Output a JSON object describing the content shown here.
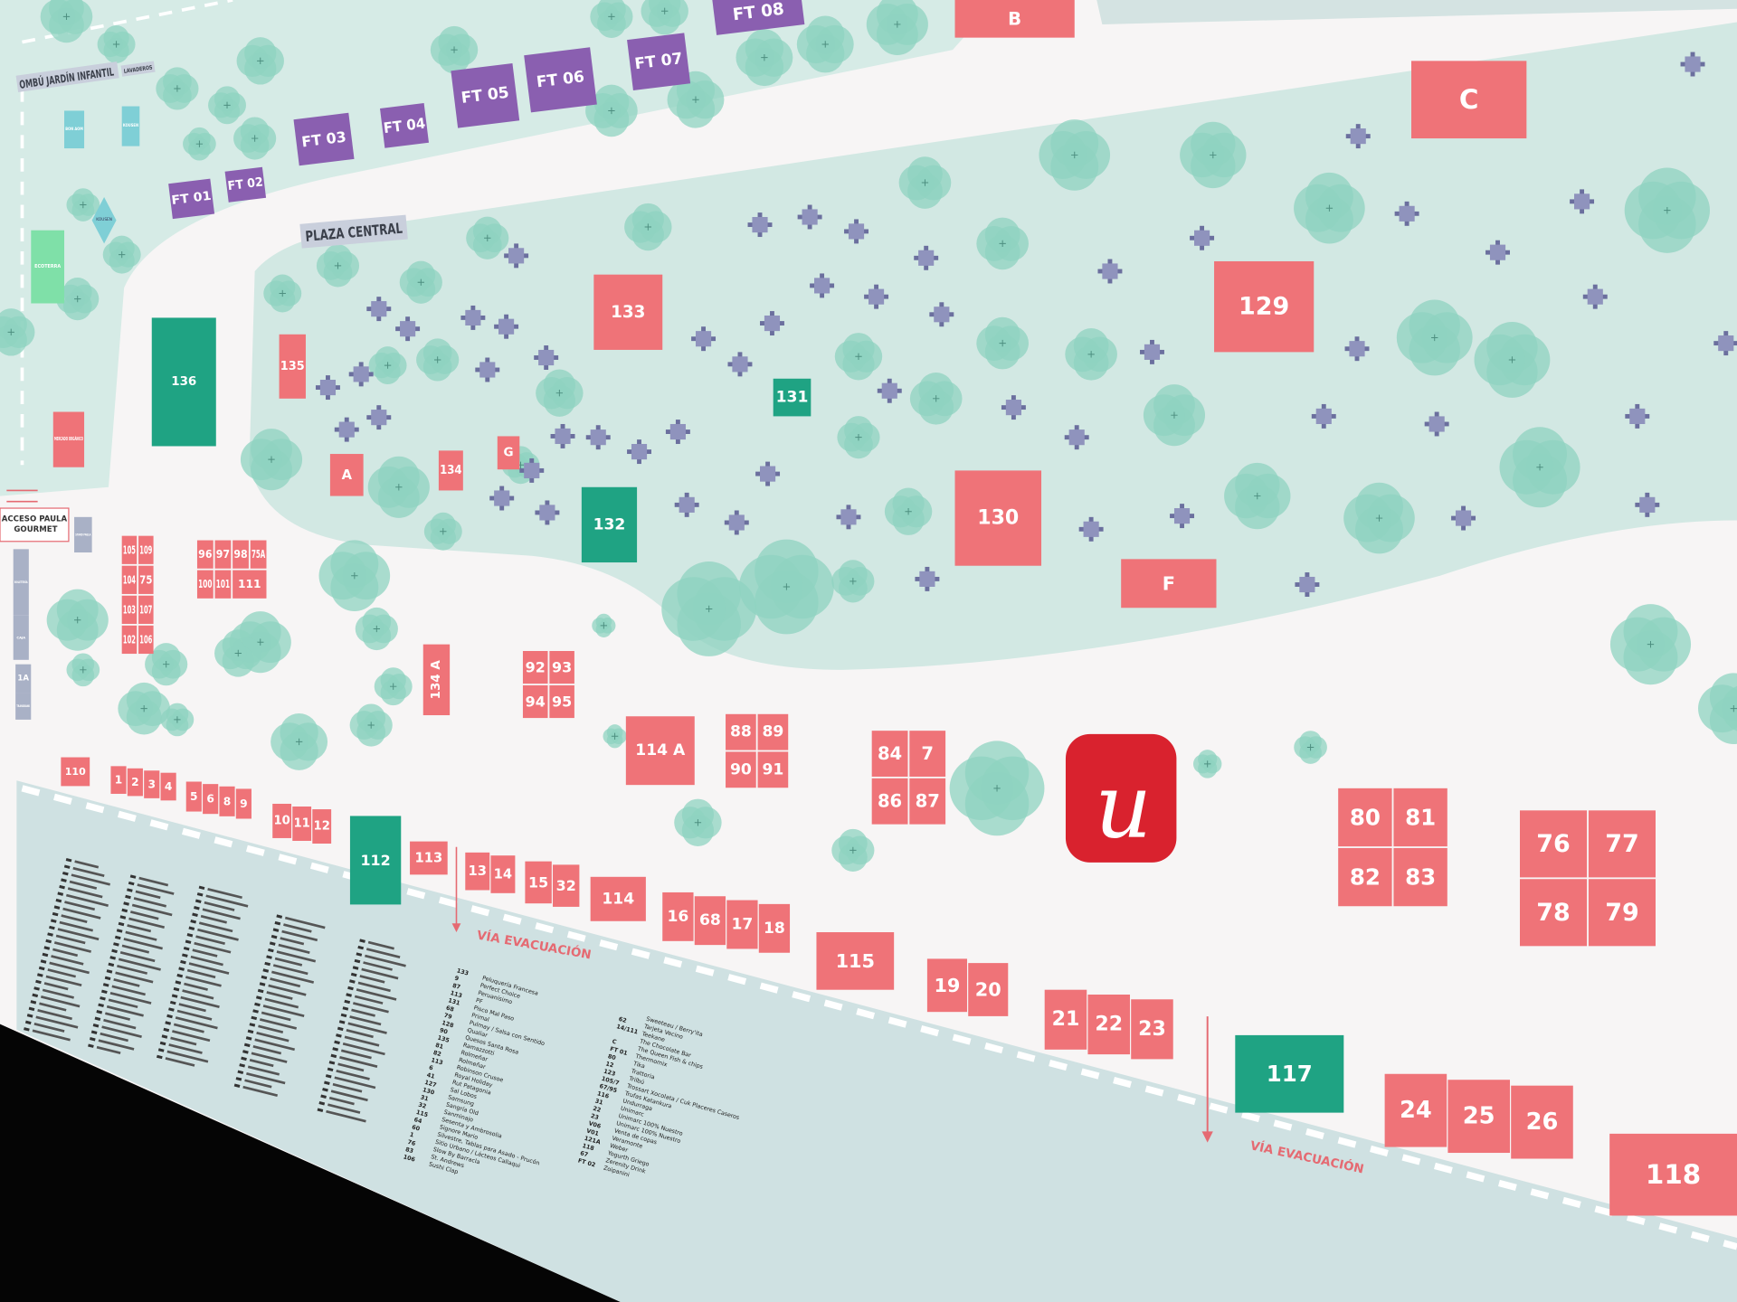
{
  "colors": {
    "booth_pink": "#ef7378",
    "booth_green": "#1fa383",
    "food_truck_purple": "#8a5fb0",
    "service_slate": "#a9b1c6",
    "service_cyan": "#7fcfd6",
    "ecoterra_green": "#7fe0a8",
    "tree": "#8fd3c0",
    "plaza_bg": "#d2e8e3",
    "road": "#f7f5f5",
    "legend_bg": "#cfe1e2",
    "logo_red": "#d9222e"
  },
  "areas": {
    "kindergarten": "OMBÚ JARDÍN INFANTIL",
    "laundry": "LAVADEROS",
    "plaza": "PLAZA CENTRAL",
    "access": "ACCESO PAULA GOURMET"
  },
  "food_trucks": [
    "FT 01",
    "FT 02",
    "FT 03",
    "FT 04",
    "FT 05",
    "FT 06",
    "FT 07",
    "FT 08"
  ],
  "booths": {
    "pink": [
      "B",
      "C",
      "129",
      "133",
      "135",
      "A",
      "134",
      "G",
      "130",
      "F",
      "134 A",
      "114 A",
      "110",
      "113",
      "114",
      "115",
      "118",
      "MERCADO ORGÁNICO"
    ],
    "green": [
      "136",
      "131",
      "132",
      "112",
      "117"
    ],
    "grid_105": [
      "105",
      "109",
      "104",
      "75",
      "103",
      "107",
      "102",
      "106"
    ],
    "grid_96": [
      "96",
      "97",
      "98",
      "75A",
      "100",
      "101",
      "111"
    ],
    "grid_92": [
      "92",
      "93",
      "94",
      "95"
    ],
    "grid_88": [
      "88",
      "89",
      "90",
      "91"
    ],
    "grid_84": [
      "84",
      "7",
      "86",
      "87"
    ],
    "grid_80": [
      "80",
      "81",
      "82",
      "83"
    ],
    "grid_76": [
      "76",
      "77",
      "78",
      "79"
    ],
    "row": [
      [
        "1",
        "2",
        "3",
        "4"
      ],
      [
        "5",
        "6",
        "8",
        "9"
      ],
      [
        "10",
        "11",
        "12"
      ],
      [
        "13",
        "14"
      ],
      [
        "15",
        "32"
      ],
      [
        "16",
        "68",
        "17",
        "18"
      ],
      [
        "19",
        "20"
      ],
      [
        "21",
        "22",
        "23"
      ],
      [
        "24",
        "25",
        "26"
      ]
    ]
  },
  "services": {
    "cyan": [
      "BON AOM",
      "KOUSEN",
      "KOUSEN"
    ],
    "ecoterra": "ECOTERRA",
    "slate": [
      "STAND PAULA",
      "BOLETERÍA",
      "CAJA",
      "1A",
      "TRANSBANK"
    ]
  },
  "logo": {
    "letter": "u",
    "icon": "unimarc-logo"
  },
  "evacuation": {
    "label": "VÍA EVACUACIÓN",
    "icon": "arrow-down-icon"
  },
  "legend": {
    "columns": [
      [
        [
          "133",
          "Peluquería Francesa"
        ],
        [
          "9",
          "Perfect Choice"
        ],
        [
          "87",
          "Peruanísimo"
        ],
        [
          "113",
          "PF"
        ],
        [
          "131",
          "Pisco Mal Paso"
        ],
        [
          "68",
          "Primal"
        ],
        [
          "79",
          "Pulmay / Salsa con Sentido"
        ],
        [
          "128",
          "Qualiar"
        ],
        [
          "90",
          "Quesos Santa Rosa"
        ],
        [
          "135",
          "Ramazzotti"
        ],
        [
          "81",
          "Rolmeñar"
        ],
        [
          "82",
          "Rolmeñar"
        ],
        [
          "113",
          "Robinson Crusoe"
        ],
        [
          "6",
          "Royal Holiday"
        ],
        [
          "41",
          "Rut Patagonia"
        ],
        [
          "127",
          "Sal Lobos"
        ],
        [
          "130",
          "Samsung"
        ],
        [
          "31",
          "Sangría Old"
        ],
        [
          "32",
          "Sanminajo"
        ],
        [
          "115",
          "Sesenta y Ambrosolia"
        ],
        [
          "64",
          "Signore Mario"
        ],
        [
          "60",
          "Silvestre, Tablas para Asado - Prucón"
        ],
        [
          "1",
          "Sitio Urbano / Lácteos Callaqui"
        ],
        [
          "76",
          "Slow By Barracla"
        ],
        [
          "83",
          "St. Andrews"
        ],
        [
          "106",
          "Sushi Clap"
        ]
      ],
      [
        [
          "",
          "Sweeteau / Berry'ita"
        ],
        [
          "62",
          "Tarjeta Vecino"
        ],
        [
          "14/111",
          "Teekane"
        ],
        [
          "",
          "The Chocolate Bar"
        ],
        [
          "C",
          "The Queen Fish & chips"
        ],
        [
          "FT 01",
          "Thermomix"
        ],
        [
          "80",
          "Tika"
        ],
        [
          "12",
          "Trattoria"
        ],
        [
          "123",
          "Trilbú"
        ],
        [
          "105/7",
          "Trossart Xocolata / Cuk Placeres Caseros"
        ],
        [
          "67/95",
          "Trufas Katankura"
        ],
        [
          "116",
          "Undurraga"
        ],
        [
          "31",
          "Unimarc"
        ],
        [
          "22",
          "Unimarc 100% Nuestro"
        ],
        [
          "23",
          "Unimarc 100% Nuestro"
        ],
        [
          "V06",
          "Venta de copas"
        ],
        [
          "V01",
          "Veramonte"
        ],
        [
          "121A",
          "Weber"
        ],
        [
          "118",
          "Yogurth Griego"
        ],
        [
          "67",
          "Zerenity Drink"
        ],
        [
          "FT 02",
          "Zoipanini"
        ]
      ]
    ]
  }
}
